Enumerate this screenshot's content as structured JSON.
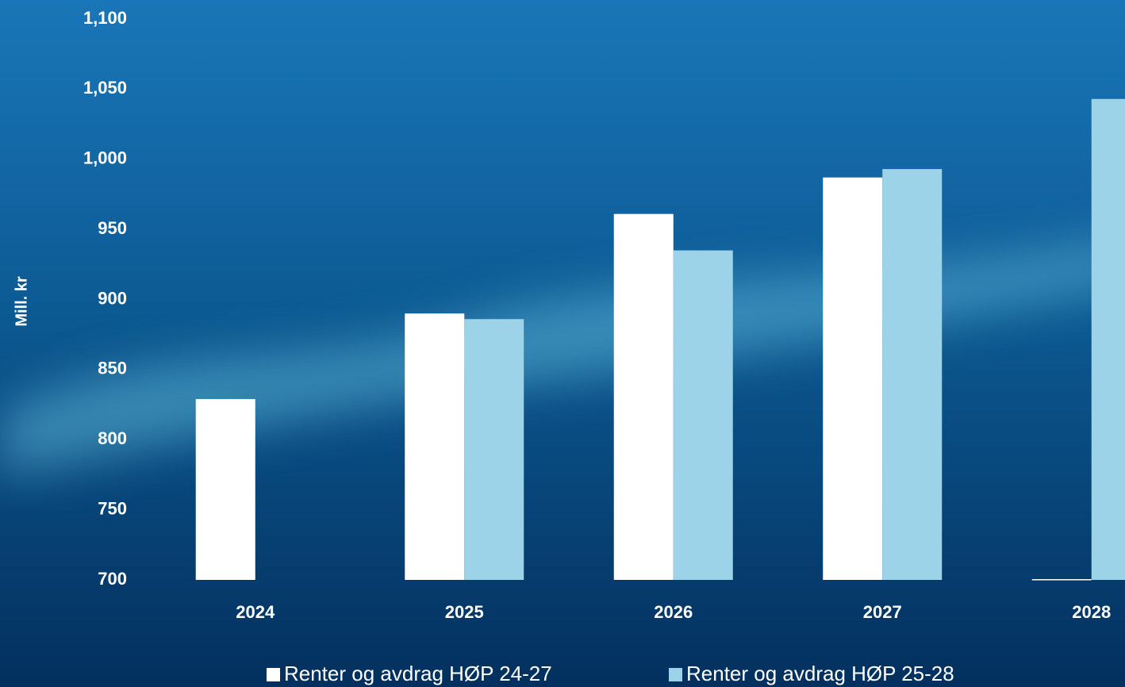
{
  "chart_data": {
    "type": "bar",
    "y_label": "Mill. kr",
    "categories": [
      "2024",
      "2025",
      "2026",
      "2027",
      "2028"
    ],
    "series": [
      {
        "name": "Renter og avdrag HØP 24-27",
        "color": "#ffffff",
        "values": [
          829,
          890,
          961,
          987,
          700
        ]
      },
      {
        "name": "Renter og avdrag HØP 25-28",
        "color": "#9dd3e8",
        "values": [
          null,
          886,
          935,
          993,
          1043
        ]
      }
    ],
    "ylim": [
      700,
      1100
    ],
    "yticks": [
      700,
      750,
      800,
      850,
      900,
      950,
      {
        "value": 1000,
        "label": "1,000"
      },
      {
        "value": 1050,
        "label": "1,050"
      },
      {
        "value": 1100,
        "label": "1,100"
      }
    ],
    "grid": false,
    "legend": "bottom"
  }
}
